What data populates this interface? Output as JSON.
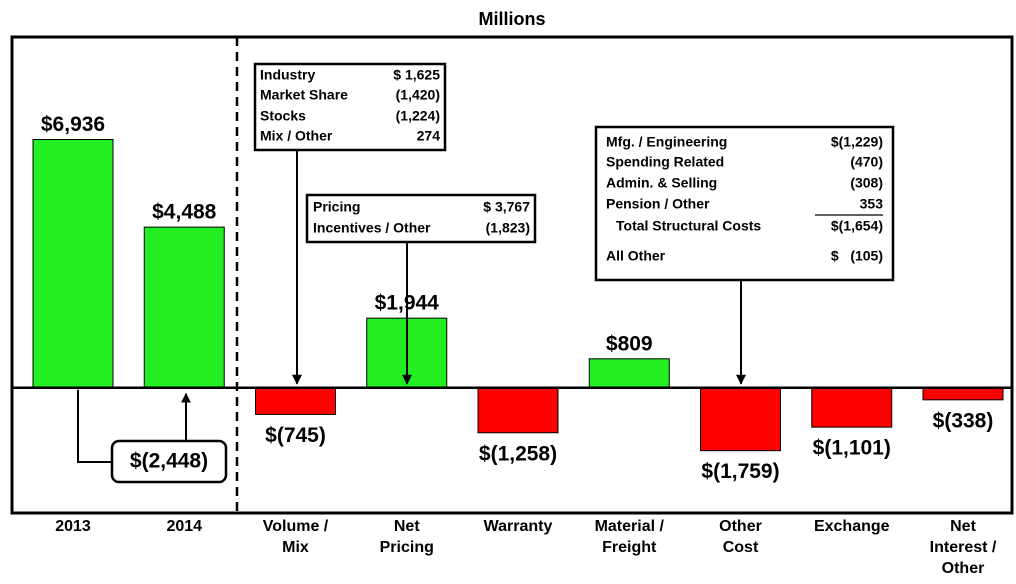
{
  "chart_data": {
    "type": "bar",
    "title": "Millions",
    "categories": [
      "2013",
      "2014",
      "Volume /\nMix",
      "Net\nPricing",
      "Warranty",
      "Material /\nFreight",
      "Other\nCost",
      "Exchange",
      "Net\nInterest /\nOther"
    ],
    "values": [
      6936,
      4488,
      -745,
      1944,
      -1258,
      809,
      -1759,
      -1101,
      -338
    ],
    "value_labels": [
      "$6,936",
      "$4,488",
      "$(745)",
      "$1,944",
      "$(1,258)",
      "$809",
      "$(1,759)",
      "$(1,101)",
      "$(338)"
    ],
    "colors": [
      "#22ee22",
      "#22ee22",
      "#ff0000",
      "#22ee22",
      "#ff0000",
      "#22ee22",
      "#ff0000",
      "#ff0000",
      "#ff0000"
    ],
    "ylim": [
      -3500,
      9800
    ],
    "difference_label": "$(2,448)",
    "callouts": [
      {
        "rows": [
          [
            "Industry",
            "$ 1,625"
          ],
          [
            "Market Share",
            "(1,420)"
          ],
          [
            "Stocks",
            "(1,224)"
          ],
          [
            "Mix / Other",
            "274"
          ]
        ]
      },
      {
        "rows": [
          [
            "Pricing",
            "$ 3,767"
          ],
          [
            "Incentives / Other",
            "(1,823)"
          ]
        ]
      },
      {
        "rows": [
          [
            "Mfg. / Engineering",
            "$(1,229)"
          ],
          [
            "Spending Related",
            "(470)"
          ],
          [
            "Admin. & Selling",
            "(308)"
          ],
          [
            "Pension / Other",
            "353"
          ],
          [
            "Total Structural Costs",
            "$(1,654)"
          ],
          [
            "All Other",
            "$   (105)"
          ]
        ]
      }
    ]
  }
}
